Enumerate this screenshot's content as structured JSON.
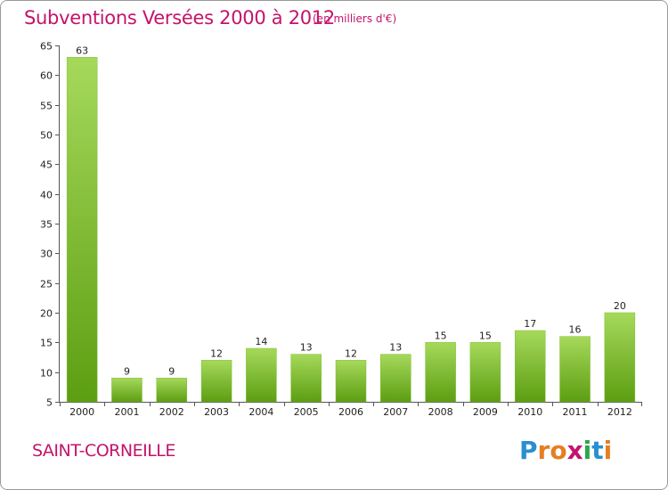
{
  "header": {
    "title": "Subventions Versées 2000 à 2012",
    "unit": "(en milliers d'€)"
  },
  "commune": "SAINT-CORNEILLE",
  "logo": {
    "text": "Proxiti",
    "letters": [
      "P",
      "r",
      "o",
      "x",
      "i",
      "t",
      "i"
    ],
    "colors": [
      "#2a8fd0",
      "#e67e22",
      "#e67e22",
      "#c4136c",
      "#2aa84a",
      "#2a8fd0",
      "#e67e22"
    ]
  },
  "colors": {
    "accent": "#c4136c",
    "bar_light": "#a6d95b",
    "bar_dark": "#5c9e12"
  },
  "chart_data": {
    "type": "bar",
    "categories": [
      "2000",
      "2001",
      "2002",
      "2003",
      "2004",
      "2005",
      "2006",
      "2007",
      "2008",
      "2009",
      "2010",
      "2011",
      "2012"
    ],
    "values": [
      63,
      9,
      9,
      12,
      14,
      13,
      12,
      13,
      15,
      15,
      17,
      16,
      20
    ],
    "ylim": [
      5,
      65
    ],
    "yticks": [
      5,
      10,
      15,
      20,
      25,
      30,
      35,
      40,
      45,
      50,
      55,
      60,
      65
    ],
    "title": "Subventions Versées 2000 à 2012",
    "xlabel": "",
    "ylabel": "",
    "grid": false
  }
}
